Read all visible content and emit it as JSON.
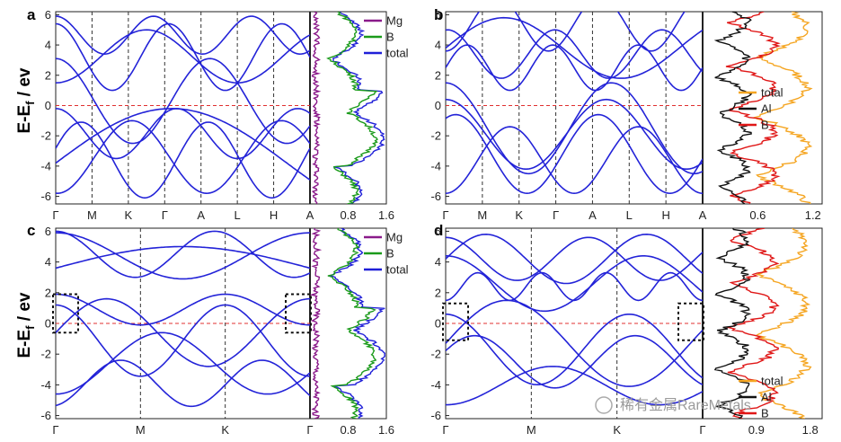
{
  "colors": {
    "band": "#2323d8",
    "fermi": "#e03030",
    "mg": "#8a1a8a",
    "b_green": "#1a9a1a",
    "total_blue": "#1f1fd8",
    "al_black": "#111111",
    "b_red": "#e01818",
    "total_orange": "#f5a623"
  },
  "watermark": "稀有金属RareMetals",
  "chart_data": [
    {
      "panel": "a",
      "type": "line",
      "subtype": "band-structure",
      "ylabel": "E-E_f / ev",
      "ylabel_main": "E-E",
      "ylabel_sub": "f",
      "ylabel_tail": " / ev",
      "ylim": [
        -6.5,
        6.2
      ],
      "yticks": [
        6,
        4,
        2,
        0,
        -2,
        -4,
        -6
      ],
      "kpath": [
        "Γ",
        "M",
        "K",
        "Γ",
        "A",
        "L",
        "H",
        "A"
      ],
      "fermi_level": 0,
      "dos": {
        "xticks": [
          "0.8",
          "1.6"
        ],
        "xlim": [
          0,
          1.6
        ],
        "legend": [
          "Mg",
          "B",
          "total"
        ]
      }
    },
    {
      "panel": "b",
      "type": "line",
      "subtype": "band-structure",
      "ylim": [
        -6.5,
        6.2
      ],
      "yticks": [
        6,
        4,
        2,
        0,
        -2,
        -4,
        -6
      ],
      "kpath": [
        "Γ",
        "M",
        "K",
        "Γ",
        "A",
        "L",
        "H",
        "A"
      ],
      "fermi_level": 0,
      "dos": {
        "xticks": [
          "0.6",
          "1.2"
        ],
        "extra_tick": "0.6",
        "xlim": [
          0,
          1.3
        ],
        "legend": [
          "total",
          "Al",
          "B"
        ]
      }
    },
    {
      "panel": "c",
      "type": "line",
      "subtype": "band-structure",
      "ylabel": "E-E_f / ev",
      "ylabel_main": "E-E",
      "ylabel_sub": "f",
      "ylabel_tail": " / ev",
      "ylim": [
        -6.2,
        6.2
      ],
      "yticks": [
        6,
        4,
        2,
        0,
        -2,
        -4,
        -6
      ],
      "kpath": [
        "Γ",
        "M",
        "K",
        "Γ"
      ],
      "fermi_level": 0,
      "dos": {
        "xticks": [
          "0.8",
          "1.6"
        ],
        "xlim": [
          0,
          1.6
        ],
        "legend": [
          "Mg",
          "B",
          "total"
        ]
      }
    },
    {
      "panel": "d",
      "type": "line",
      "subtype": "band-structure",
      "ylim": [
        -6.2,
        6.2
      ],
      "yticks": [
        6,
        4,
        2,
        0,
        -2,
        -4,
        -6
      ],
      "kpath": [
        "Γ",
        "M",
        "K",
        "Γ"
      ],
      "fermi_level": 0,
      "dos": {
        "xticks": [
          "0.9",
          "1.8"
        ],
        "xlim": [
          0,
          2.0
        ],
        "legend": [
          "total",
          "Al",
          "B"
        ]
      }
    }
  ]
}
